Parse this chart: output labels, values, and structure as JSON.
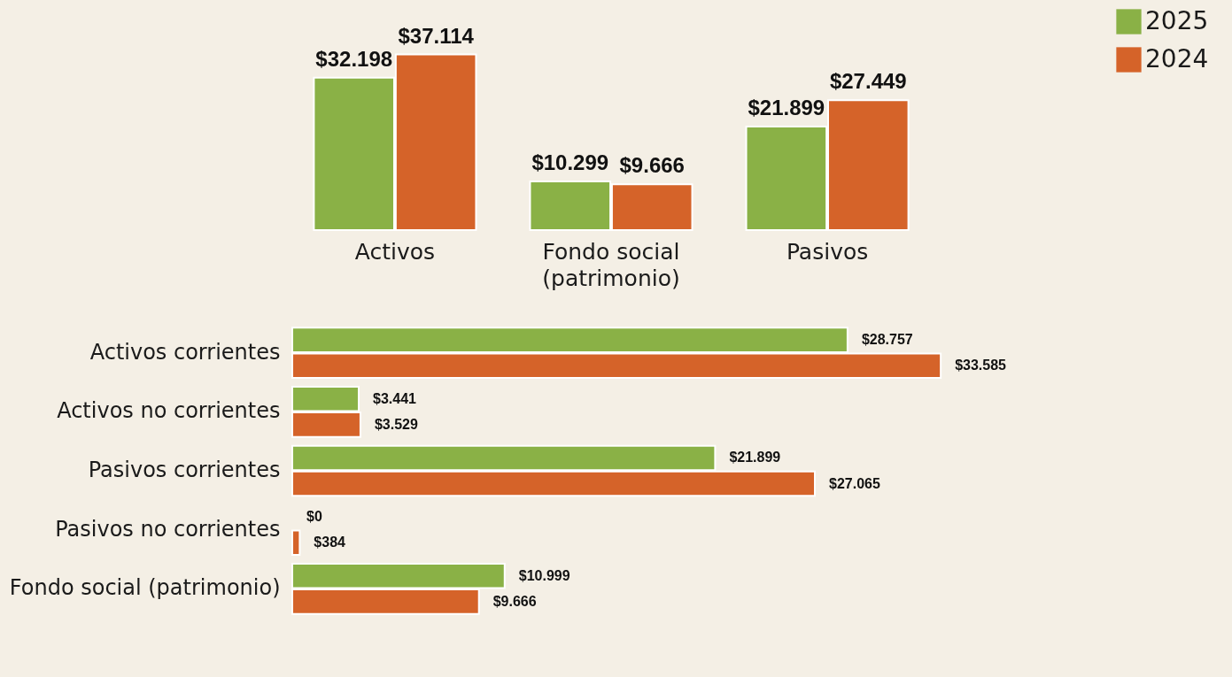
{
  "chart_data": [
    {
      "type": "bar",
      "categories": [
        "Activos",
        "Fondo social (patrimonio)",
        "Pasivos"
      ],
      "series": [
        {
          "name": "2025",
          "color": "#8ab146",
          "values": [
            32198,
            10299,
            21899
          ],
          "value_labels": [
            "$32.198",
            "$10.299",
            "$21.899"
          ]
        },
        {
          "name": "2024",
          "color": "#d56329",
          "values": [
            37114,
            9666,
            27449
          ],
          "value_labels": [
            "$37.114",
            "$9.666",
            "$27.449"
          ]
        }
      ],
      "legend": "top right",
      "tick_labels": "x",
      "grid": false
    },
    {
      "type": "bar",
      "orientation": "horizontal",
      "categories": [
        "Activos corrientes",
        "Activos no corrientes",
        "Pasivos corrientes",
        "Pasivos no corrientes",
        "Fondo social (patrimonio)"
      ],
      "series": [
        {
          "color": "#8ab146",
          "values": [
            28757,
            3441,
            21899,
            0,
            10999
          ],
          "value_labels": [
            "$28.757",
            "$3.441",
            "$21.899",
            "$0",
            "$10.999"
          ]
        },
        {
          "color": "#d56329",
          "values": [
            33585,
            3529,
            27065,
            384,
            9666
          ],
          "value_labels": [
            "$33.585",
            "$3.529",
            "$27.065",
            "$384",
            "$9.666"
          ]
        }
      ],
      "tick_labels": "y",
      "grid": false
    }
  ]
}
